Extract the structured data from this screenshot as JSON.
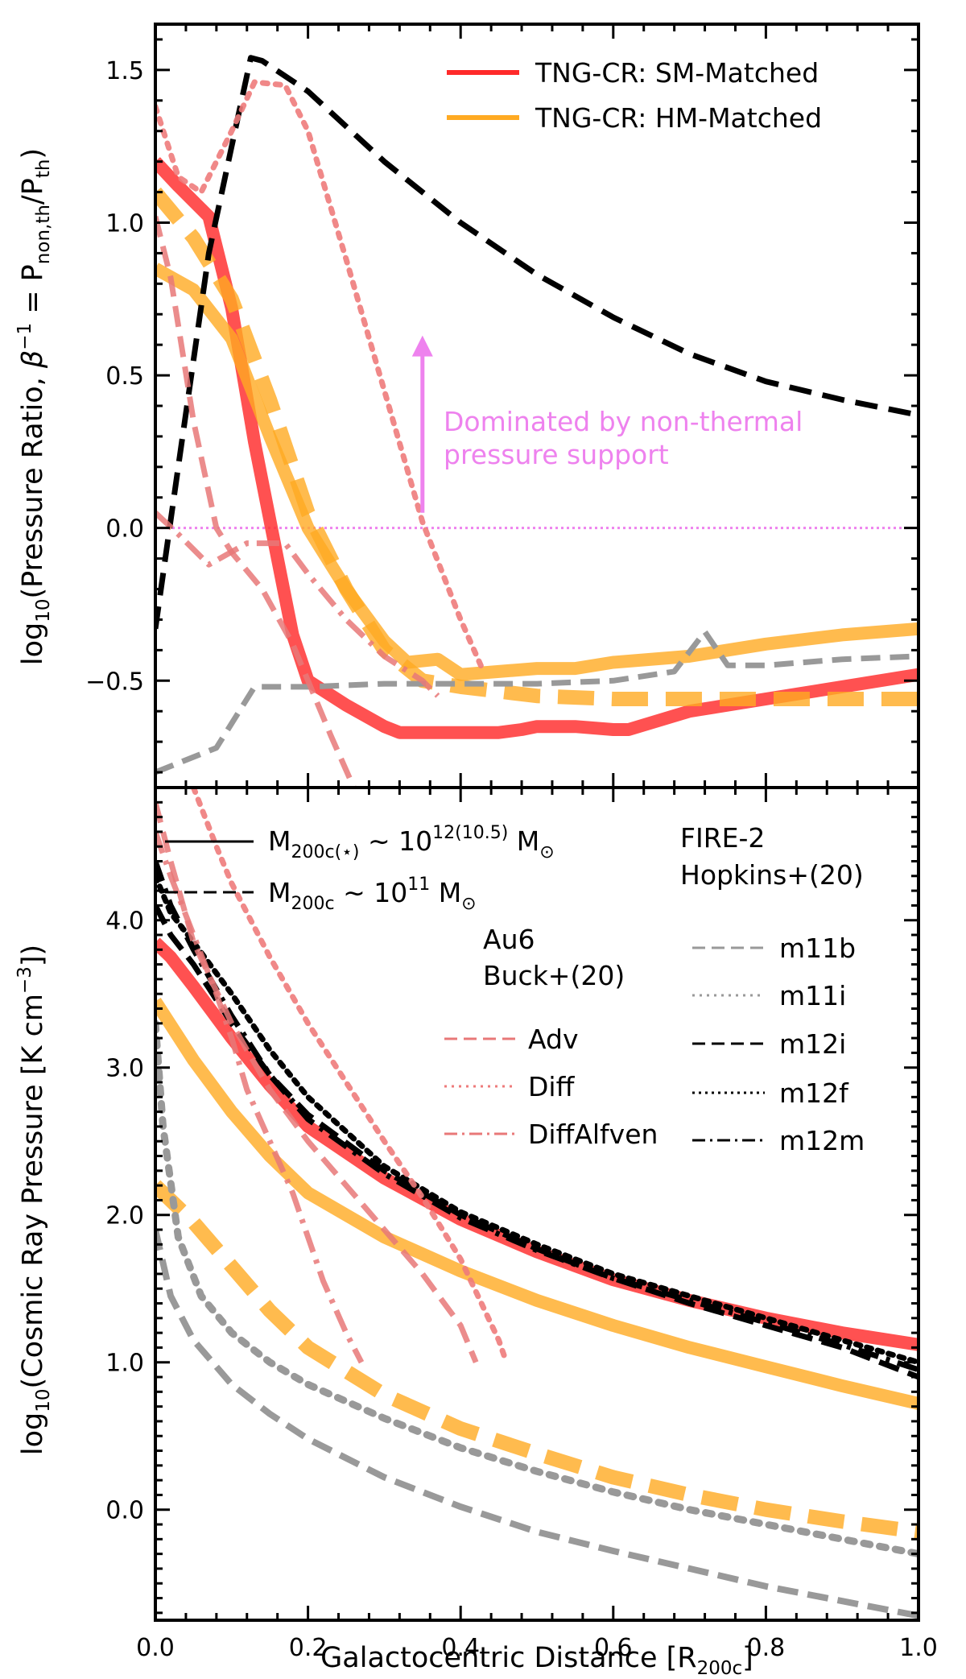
{
  "chart_data": [
    {
      "type": "line",
      "panel": "top",
      "ylabel": "log₁₀(Pressure Ratio, β⁻¹ = Pnon,th/Pth)",
      "ylabel_parts": {
        "pre": "log",
        "sub1": "10",
        "mid": "(Pressure Ratio, ",
        "beta": "β",
        "sup": "−1",
        "eq": " = P",
        "sub2": "non,th",
        "slash": "/P",
        "sub3": "th",
        "close": ")"
      },
      "xlim": [
        0.0,
        1.0
      ],
      "ylim": [
        -0.85,
        1.65
      ],
      "yticks": [
        -0.5,
        0.0,
        0.5,
        1.0,
        1.5
      ],
      "ytick_labels": [
        "−0.5",
        "0.0",
        "0.5",
        "1.0",
        "1.5"
      ],
      "hline": {
        "y": 0.0,
        "color": "#ee82ee",
        "style": "dotted"
      },
      "annotation": {
        "line1": "Dominated by non-thermal",
        "line2": "pressure support",
        "arrow_x": 0.35,
        "arrow_y_from": 0.05,
        "arrow_y_to": 0.62,
        "color": "#ee82ee"
      },
      "legend": [
        {
          "label": "TNG-CR: SM-Matched",
          "color": "#ff2a2a"
        },
        {
          "label": "TNG-CR: HM-Matched",
          "color": "#ffaa22"
        }
      ],
      "series": [
        {
          "name": "TNG-CR SM-Matched M12",
          "color": "#ff3333",
          "alpha": 0.85,
          "width": 16,
          "dash": "",
          "x": [
            0.0,
            0.03,
            0.07,
            0.1,
            0.13,
            0.16,
            0.18,
            0.2,
            0.25,
            0.3,
            0.32,
            0.35,
            0.4,
            0.45,
            0.48,
            0.5,
            0.55,
            0.6,
            0.62,
            0.7,
            0.8,
            0.9,
            1.0
          ],
          "y": [
            1.2,
            1.12,
            1.02,
            0.72,
            0.28,
            -0.1,
            -0.35,
            -0.5,
            -0.58,
            -0.65,
            -0.67,
            -0.67,
            -0.67,
            -0.67,
            -0.66,
            -0.65,
            -0.65,
            -0.66,
            -0.66,
            -0.6,
            -0.56,
            -0.52,
            -0.48
          ]
        },
        {
          "name": "TNG-CR HM-Matched M12",
          "color": "#ffaa22",
          "alpha": 0.8,
          "width": 16,
          "dash": "",
          "x": [
            0.0,
            0.05,
            0.1,
            0.15,
            0.2,
            0.25,
            0.3,
            0.33,
            0.37,
            0.4,
            0.45,
            0.5,
            0.55,
            0.6,
            0.7,
            0.8,
            0.9,
            1.0
          ],
          "y": [
            0.85,
            0.78,
            0.62,
            0.3,
            0.0,
            -0.2,
            -0.37,
            -0.44,
            -0.43,
            -0.48,
            -0.47,
            -0.46,
            -0.46,
            -0.44,
            -0.42,
            -0.38,
            -0.35,
            -0.33
          ]
        },
        {
          "name": "TNG-CR HM-Matched M11",
          "color": "#ffaa22",
          "alpha": 0.8,
          "width": 18,
          "dash": "45,22",
          "x": [
            0.0,
            0.05,
            0.1,
            0.15,
            0.2,
            0.25,
            0.3,
            0.35,
            0.4,
            0.5,
            0.6,
            0.7,
            0.8,
            0.9,
            1.0
          ],
          "y": [
            1.1,
            0.95,
            0.75,
            0.42,
            0.05,
            -0.2,
            -0.4,
            -0.5,
            -0.52,
            -0.55,
            -0.56,
            -0.56,
            -0.56,
            -0.56,
            -0.56
          ]
        },
        {
          "name": "FIRE-2 m11b",
          "color": "#999999",
          "alpha": 1,
          "width": 7,
          "dash": "24,12",
          "x": [
            0.0,
            0.08,
            0.13,
            0.2,
            0.3,
            0.4,
            0.5,
            0.6,
            0.68,
            0.72,
            0.75,
            0.8,
            0.9,
            1.0
          ],
          "y": [
            -0.8,
            -0.72,
            -0.52,
            -0.52,
            -0.51,
            -0.51,
            -0.51,
            -0.5,
            -0.47,
            -0.34,
            -0.45,
            -0.45,
            -0.43,
            -0.42
          ]
        },
        {
          "name": "FIRE-2 m12i",
          "color": "#000000",
          "alpha": 1,
          "width": 7,
          "dash": "28,14",
          "x": [
            0.0,
            0.03,
            0.07,
            0.1,
            0.125,
            0.14,
            0.2,
            0.3,
            0.4,
            0.5,
            0.6,
            0.7,
            0.8,
            0.9,
            1.0
          ],
          "y": [
            -0.33,
            0.2,
            0.9,
            1.25,
            1.54,
            1.53,
            1.43,
            1.2,
            1.0,
            0.83,
            0.69,
            0.57,
            0.48,
            0.42,
            0.37
          ]
        },
        {
          "name": "Au6 Adv",
          "color": "#e87878",
          "alpha": 0.85,
          "width": 7,
          "dash": "26,12",
          "x": [
            0.0,
            0.02,
            0.05,
            0.08,
            0.1,
            0.14,
            0.18,
            0.2,
            0.23,
            0.26
          ],
          "y": [
            1.02,
            0.82,
            0.35,
            0.0,
            -0.08,
            -0.2,
            -0.38,
            -0.5,
            -0.68,
            -0.85
          ]
        },
        {
          "name": "Au6 Diff",
          "color": "#ee7b7b",
          "alpha": 0.9,
          "width": 7,
          "dash": "6,10",
          "x": [
            0.0,
            0.03,
            0.06,
            0.1,
            0.13,
            0.17,
            0.2,
            0.25,
            0.3,
            0.35,
            0.4,
            0.43
          ],
          "y": [
            1.38,
            1.15,
            1.1,
            1.3,
            1.46,
            1.45,
            1.3,
            0.88,
            0.45,
            0.02,
            -0.3,
            -0.47
          ]
        },
        {
          "name": "Au6 DiffAlfven",
          "color": "#e87878",
          "alpha": 0.85,
          "width": 7,
          "dash": "28,10,5,10",
          "x": [
            0.0,
            0.03,
            0.07,
            0.12,
            0.17,
            0.2,
            0.25,
            0.3,
            0.35,
            0.37
          ],
          "y": [
            0.05,
            -0.02,
            -0.12,
            -0.05,
            -0.05,
            -0.15,
            -0.3,
            -0.42,
            -0.5,
            -0.55
          ]
        }
      ]
    },
    {
      "type": "line",
      "panel": "bottom",
      "ylabel": "log₁₀(Cosmic Ray Pressure [K cm⁻³])",
      "ylabel_parts": {
        "pre": "log",
        "sub": "10",
        "mid": "(Cosmic Ray Pressure [K cm",
        "sup": "−3",
        "close": "])"
      },
      "xlabel": "Galactocentric Distance [R200c]",
      "xlabel_parts": {
        "pre": "Galactocentric Distance [R",
        "sub": "200c",
        "close": "]"
      },
      "xlim": [
        0.0,
        1.0
      ],
      "ylim": [
        -0.75,
        4.9
      ],
      "xticks": [
        0.0,
        0.2,
        0.4,
        0.6,
        0.8,
        1.0
      ],
      "xtick_labels": [
        "0.0",
        "0.2",
        "0.4",
        "0.6",
        "0.8",
        "1.0"
      ],
      "yticks": [
        0.0,
        1.0,
        2.0,
        3.0,
        4.0
      ],
      "ytick_labels": [
        "0.0",
        "1.0",
        "2.0",
        "3.0",
        "4.0"
      ],
      "legend_mass": [
        {
          "pre": "M",
          "sub": "200c(⋆)",
          "mid": " ∼ 10",
          "sup": "12(10.5)",
          "post": " M",
          "sun": "⊙",
          "style": "solid"
        },
        {
          "pre": "M",
          "sub": "200c",
          "mid": " ∼ 10",
          "sup": "11",
          "post": " M",
          "sun": "⊙",
          "style": "dashed"
        }
      ],
      "legend_au6": {
        "title1": "Au6",
        "title2": "Buck+(20)",
        "entries": [
          "Adv",
          "Diff",
          "DiffAlfven"
        ]
      },
      "legend_fire": {
        "title1": "FIRE-2",
        "title2": "Hopkins+(20)",
        "entries": [
          "m11b",
          "m11i",
          "m12i",
          "m12f",
          "m12m"
        ]
      },
      "series": [
        {
          "name": "TNG-CR SM-Matched M12",
          "color": "#ff3333",
          "alpha": 0.85,
          "width": 16,
          "dash": "",
          "x": [
            0.0,
            0.02,
            0.05,
            0.1,
            0.15,
            0.2,
            0.3,
            0.4,
            0.5,
            0.6,
            0.7,
            0.8,
            0.9,
            1.0
          ],
          "y": [
            3.85,
            3.75,
            3.55,
            3.2,
            2.88,
            2.6,
            2.25,
            1.97,
            1.75,
            1.56,
            1.42,
            1.3,
            1.2,
            1.12
          ]
        },
        {
          "name": "TNG-CR HM-Matched M12",
          "color": "#ffaa22",
          "alpha": 0.8,
          "width": 16,
          "dash": "",
          "x": [
            0.0,
            0.05,
            0.1,
            0.15,
            0.2,
            0.3,
            0.4,
            0.5,
            0.6,
            0.7,
            0.8,
            0.9,
            1.0
          ],
          "y": [
            3.45,
            3.05,
            2.7,
            2.4,
            2.15,
            1.85,
            1.62,
            1.42,
            1.25,
            1.1,
            0.97,
            0.84,
            0.72
          ]
        },
        {
          "name": "TNG-CR HM-Matched M11",
          "color": "#ffaa22",
          "alpha": 0.8,
          "width": 18,
          "dash": "45,22",
          "x": [
            0.0,
            0.05,
            0.1,
            0.15,
            0.2,
            0.3,
            0.4,
            0.5,
            0.6,
            0.7,
            0.8,
            0.9,
            1.0
          ],
          "y": [
            2.2,
            1.95,
            1.65,
            1.35,
            1.1,
            0.78,
            0.55,
            0.38,
            0.22,
            0.1,
            0.0,
            -0.08,
            -0.15
          ]
        },
        {
          "name": "FIRE-2 m11b",
          "color": "#999999",
          "alpha": 1,
          "width": 8,
          "dash": "26,12",
          "x": [
            0.0,
            0.02,
            0.05,
            0.1,
            0.15,
            0.2,
            0.3,
            0.4,
            0.5,
            0.6,
            0.7,
            0.8,
            0.9,
            1.0
          ],
          "y": [
            1.9,
            1.45,
            1.15,
            0.85,
            0.65,
            0.48,
            0.22,
            0.02,
            -0.15,
            -0.28,
            -0.4,
            -0.52,
            -0.62,
            -0.72
          ]
        },
        {
          "name": "FIRE-2 m11i",
          "color": "#999999",
          "alpha": 1,
          "width": 9,
          "dash": "8,12",
          "x": [
            0.0,
            0.01,
            0.03,
            0.06,
            0.1,
            0.15,
            0.2,
            0.3,
            0.4,
            0.5,
            0.6,
            0.7,
            0.8,
            0.9,
            1.0
          ],
          "y": [
            3.3,
            2.6,
            1.85,
            1.45,
            1.2,
            1.0,
            0.85,
            0.62,
            0.42,
            0.26,
            0.12,
            0.0,
            -0.1,
            -0.2,
            -0.3
          ]
        },
        {
          "name": "FIRE-2 m12i",
          "color": "#000000",
          "alpha": 1,
          "width": 7,
          "dash": "26,12",
          "x": [
            0.0,
            0.02,
            0.05,
            0.1,
            0.15,
            0.2,
            0.3,
            0.4,
            0.5,
            0.6,
            0.7,
            0.8,
            0.9,
            1.0
          ],
          "y": [
            4.1,
            3.9,
            3.7,
            3.3,
            2.95,
            2.68,
            2.3,
            2.0,
            1.77,
            1.57,
            1.4,
            1.25,
            1.1,
            0.9
          ]
        },
        {
          "name": "FIRE-2 m12f",
          "color": "#000000",
          "alpha": 1,
          "width": 7,
          "dash": "6,8",
          "x": [
            0.0,
            0.02,
            0.05,
            0.1,
            0.15,
            0.2,
            0.3,
            0.4,
            0.5,
            0.6,
            0.7,
            0.8,
            0.9,
            1.0
          ],
          "y": [
            4.3,
            4.05,
            3.85,
            3.5,
            3.12,
            2.8,
            2.33,
            2.02,
            1.8,
            1.6,
            1.45,
            1.3,
            1.15,
            1.0
          ]
        },
        {
          "name": "FIRE-2 m12m",
          "color": "#000000",
          "alpha": 1,
          "width": 7,
          "dash": "26,10,5,10",
          "x": [
            0.0,
            0.02,
            0.05,
            0.1,
            0.15,
            0.2,
            0.3,
            0.4,
            0.5,
            0.6,
            0.7,
            0.8,
            0.9,
            1.0
          ],
          "y": [
            4.4,
            4.1,
            3.8,
            3.35,
            2.95,
            2.65,
            2.28,
            1.98,
            1.76,
            1.57,
            1.42,
            1.27,
            1.12,
            0.95
          ]
        },
        {
          "name": "Au6 Adv",
          "color": "#e87878",
          "alpha": 0.85,
          "width": 7,
          "dash": "26,12",
          "x": [
            0.0,
            0.02,
            0.05,
            0.1,
            0.15,
            0.2,
            0.25,
            0.3,
            0.35,
            0.4,
            0.42
          ],
          "y": [
            4.8,
            4.4,
            3.85,
            3.3,
            2.85,
            2.5,
            2.2,
            1.9,
            1.6,
            1.25,
            1.0
          ]
        },
        {
          "name": "Au6 Diff",
          "color": "#ee7b7b",
          "alpha": 0.9,
          "width": 7,
          "dash": "6,10",
          "x": [
            0.05,
            0.08,
            0.1,
            0.15,
            0.2,
            0.25,
            0.3,
            0.35,
            0.4,
            0.45,
            0.46
          ],
          "y": [
            4.9,
            4.5,
            4.25,
            3.75,
            3.3,
            2.9,
            2.5,
            2.12,
            1.7,
            1.15,
            1.0
          ]
        },
        {
          "name": "Au6 DiffAlfven",
          "color": "#e87878",
          "alpha": 0.85,
          "width": 7,
          "dash": "28,10,5,10",
          "x": [
            0.0,
            0.02,
            0.05,
            0.08,
            0.1,
            0.12,
            0.15,
            0.18,
            0.2,
            0.22,
            0.25,
            0.27
          ],
          "y": [
            4.6,
            4.3,
            3.9,
            3.5,
            3.2,
            2.85,
            2.5,
            2.15,
            1.85,
            1.55,
            1.2,
            1.0
          ]
        }
      ]
    }
  ]
}
